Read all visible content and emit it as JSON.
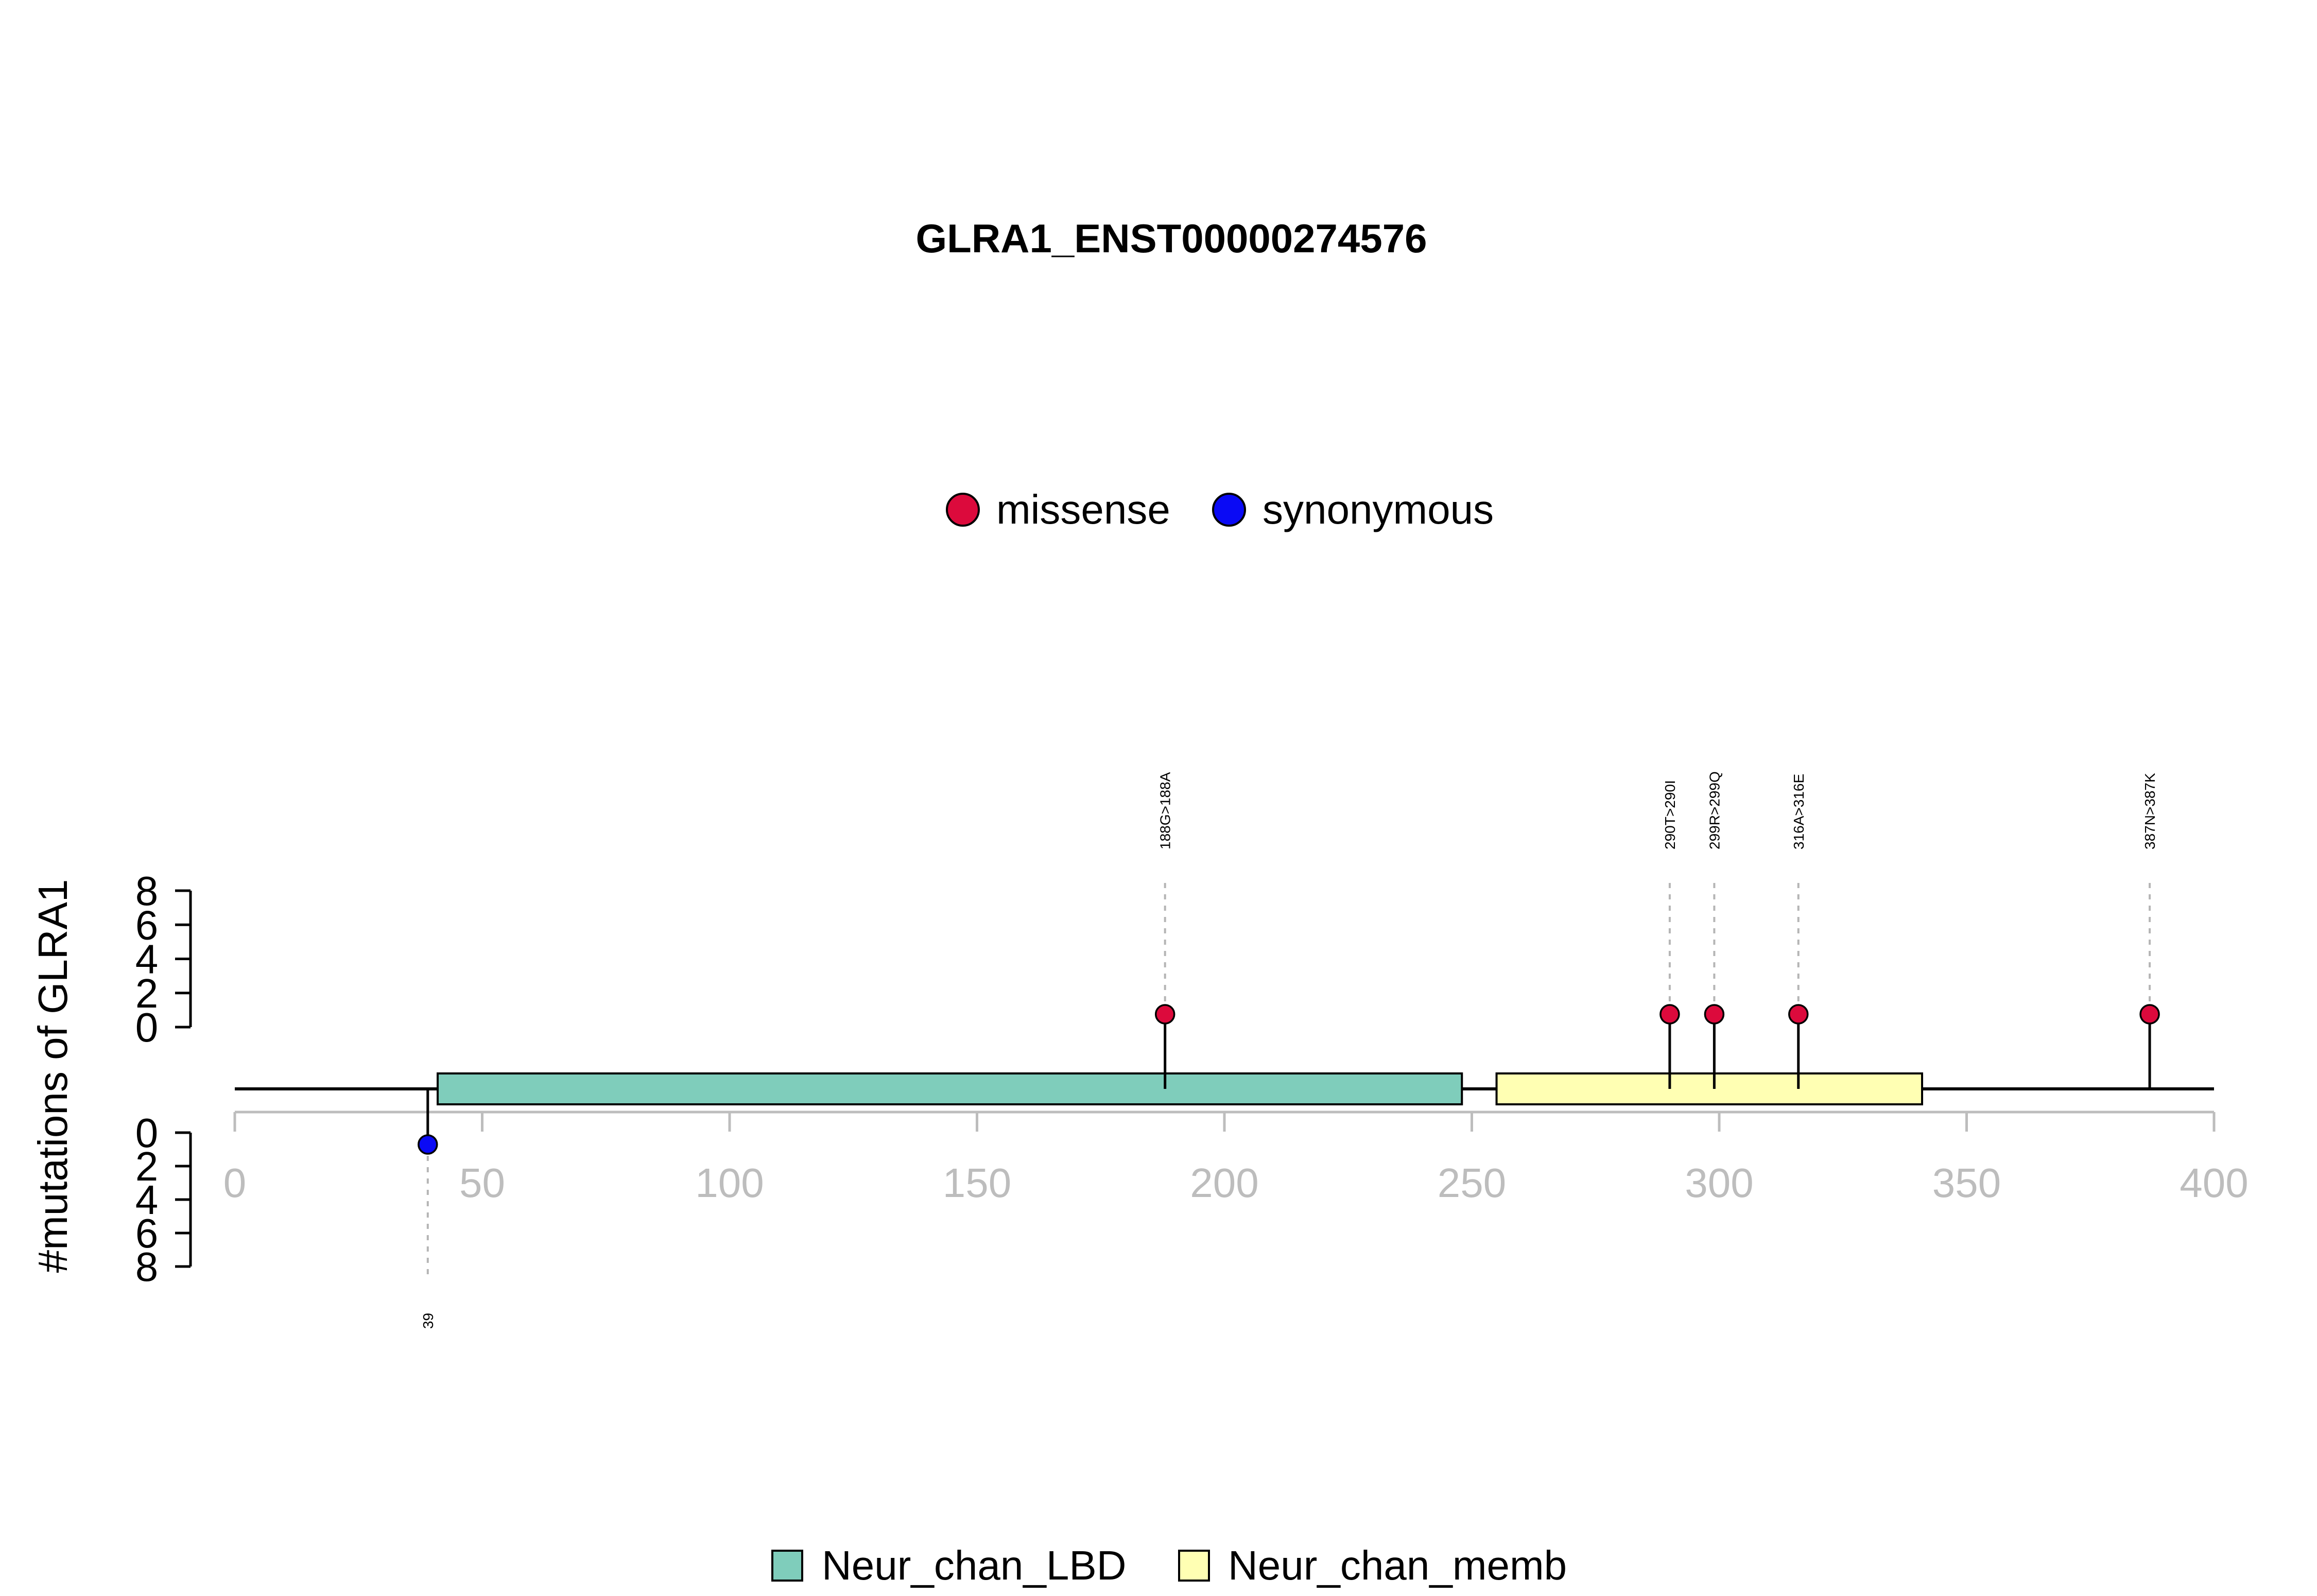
{
  "chart_data": {
    "type": "lollipop",
    "title": "GLRA1_ENST00000274576",
    "ylabel": "#mutations of GLRA1",
    "xlim": [
      0,
      400
    ],
    "x_ticks": [
      0,
      50,
      100,
      150,
      200,
      250,
      300,
      350,
      400
    ],
    "y_ticks_top": [
      0,
      2,
      4,
      6,
      8
    ],
    "y_ticks_bottom": [
      0,
      2,
      4,
      6,
      8
    ],
    "ylim": [
      0,
      8
    ],
    "mutation_legend": [
      {
        "name": "missense",
        "color": "#dc0a3c"
      },
      {
        "name": "synonymous",
        "color": "#0a0af5"
      }
    ],
    "domain_legend": [
      {
        "name": "Neur_chan_LBD",
        "color": "#7fcdbb"
      },
      {
        "name": "Neur_chan_memb",
        "color": "#ffffb3"
      }
    ],
    "domains": [
      {
        "name": "Neur_chan_LBD",
        "start": 41,
        "end": 248,
        "color": "#7fcdbb"
      },
      {
        "name": "Neur_chan_memb",
        "start": 255,
        "end": 341,
        "color": "#ffffb3"
      }
    ],
    "mutations": [
      {
        "position": 39,
        "label": "39",
        "count": 1,
        "type": "synonymous",
        "side": "bottom"
      },
      {
        "position": 188,
        "label": "188G>188A",
        "count": 1,
        "type": "missense",
        "side": "top"
      },
      {
        "position": 290,
        "label": "290T>290I",
        "count": 1,
        "type": "missense",
        "side": "top"
      },
      {
        "position": 299,
        "label": "299R>299Q",
        "count": 1,
        "type": "missense",
        "side": "top"
      },
      {
        "position": 316,
        "label": "316A>316E",
        "count": 1,
        "type": "missense",
        "side": "top"
      },
      {
        "position": 387,
        "label": "387N>387K",
        "count": 1,
        "type": "missense",
        "side": "top"
      }
    ]
  }
}
